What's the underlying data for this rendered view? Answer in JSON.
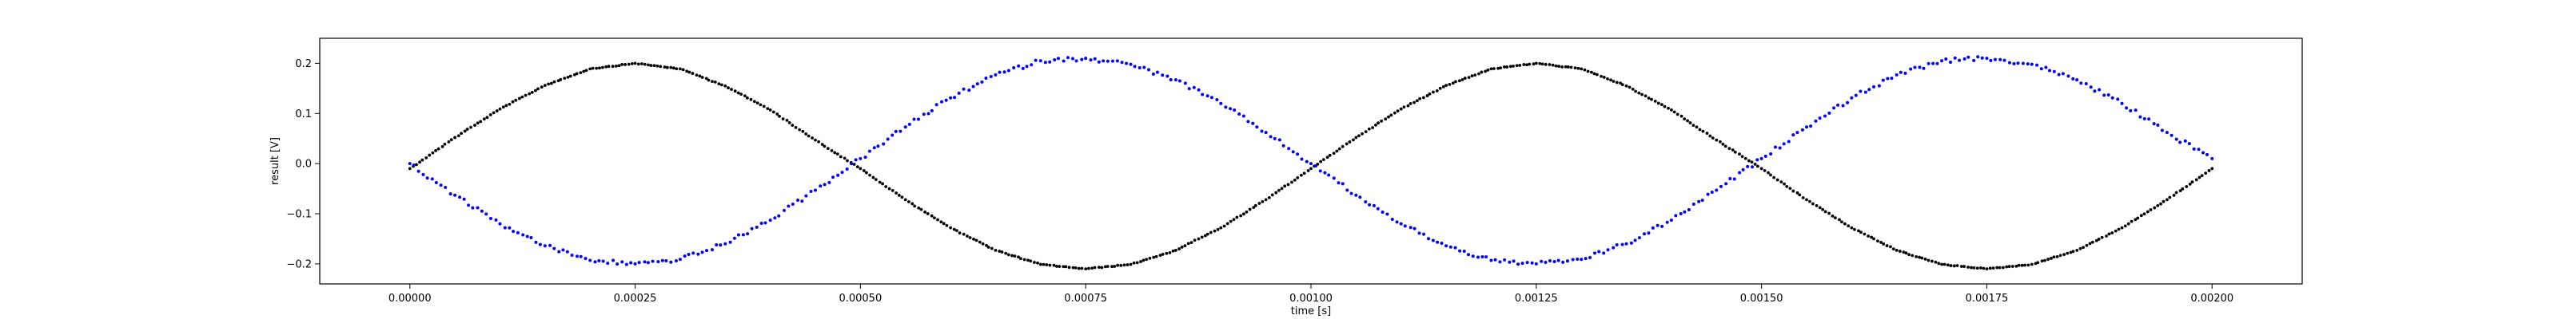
{
  "chart_data": {
    "type": "scatter",
    "title": "",
    "xlabel": "time [s]",
    "ylabel": "result [V]",
    "xlim": [
      -0.0001,
      0.0021
    ],
    "ylim": [
      -0.24,
      0.25
    ],
    "grid": false,
    "legend": "none",
    "xticks": [
      0.0,
      0.00025,
      0.0005,
      0.00075,
      0.001,
      0.00125,
      0.0015,
      0.00175,
      0.002
    ],
    "xtick_labels": [
      "0.00000",
      "0.00025",
      "0.00050",
      "0.00075",
      "0.00100",
      "0.00125",
      "0.00150",
      "0.00175",
      "0.00200"
    ],
    "yticks": [
      -0.2,
      -0.1,
      0.0,
      0.1,
      0.2
    ],
    "ytick_labels": [
      "−0.2",
      "−0.1",
      "0.0",
      "0.1",
      "0.2"
    ],
    "series": [
      {
        "color": "#000000",
        "x": [
          0.0,
          5e-05,
          0.0001,
          0.00015,
          0.0002,
          0.00025,
          0.0003,
          0.00035,
          0.0004,
          0.00045,
          0.0005,
          0.00055,
          0.0006,
          0.00065,
          0.0007,
          0.00075,
          0.0008,
          0.00085,
          0.0009,
          0.00095,
          0.001,
          0.00105,
          0.0011,
          0.00115,
          0.0012,
          0.00125,
          0.0013,
          0.00135,
          0.0014,
          0.00145,
          0.0015,
          0.00155,
          0.0016,
          0.00165,
          0.0017,
          0.00175,
          0.0018,
          0.00185,
          0.0019,
          0.00195,
          0.002
        ],
        "y": [
          -0.01,
          0.052,
          0.109,
          0.156,
          0.189,
          0.2,
          0.189,
          0.155,
          0.107,
          0.047,
          -0.01,
          -0.072,
          -0.128,
          -0.173,
          -0.201,
          -0.21,
          -0.201,
          -0.173,
          -0.128,
          -0.072,
          -0.01,
          0.052,
          0.109,
          0.156,
          0.189,
          0.2,
          0.189,
          0.155,
          0.107,
          0.047,
          -0.01,
          -0.072,
          -0.128,
          -0.173,
          -0.201,
          -0.21,
          -0.201,
          -0.173,
          -0.128,
          -0.072,
          -0.01
        ]
      },
      {
        "color": "#0000ff",
        "x": [
          0.0,
          5e-05,
          0.0001,
          0.00015,
          0.0002,
          0.00025,
          0.0003,
          0.00035,
          0.0004,
          0.00045,
          0.0005,
          0.00055,
          0.0006,
          0.00065,
          0.0007,
          0.00075,
          0.0008,
          0.00085,
          0.0009,
          0.00095,
          0.001,
          0.00105,
          0.0011,
          0.00115,
          0.0012,
          0.00125,
          0.0013,
          0.00135,
          0.0014,
          0.00145,
          0.0015,
          0.00155,
          0.0016,
          0.00165,
          0.0017,
          0.00175,
          0.0018,
          0.00185,
          0.0019,
          0.00195,
          0.002
        ],
        "y": [
          0.0,
          -0.063,
          -0.12,
          -0.164,
          -0.193,
          -0.2,
          -0.191,
          -0.16,
          -0.113,
          -0.053,
          0.01,
          0.073,
          0.131,
          0.177,
          0.205,
          0.21,
          0.198,
          0.167,
          0.12,
          0.062,
          0.0,
          -0.063,
          -0.12,
          -0.164,
          -0.193,
          -0.2,
          -0.191,
          -0.16,
          -0.113,
          -0.053,
          0.01,
          0.073,
          0.131,
          0.177,
          0.205,
          0.21,
          0.198,
          0.167,
          0.12,
          0.062,
          0.01
        ]
      }
    ]
  }
}
